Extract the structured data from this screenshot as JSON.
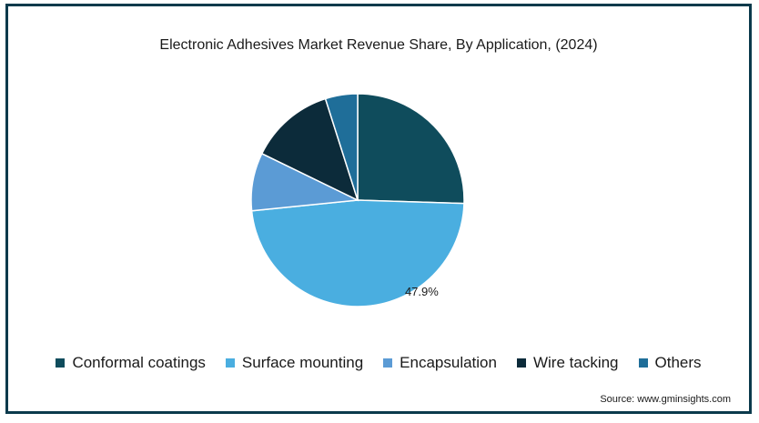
{
  "chart_data": {
    "type": "pie",
    "title": "Electronic Adhesives Market Revenue Share, By Application, (2024)",
    "slices": [
      {
        "name": "Conformal coatings",
        "value": 25.5,
        "color": "#0f4c5c"
      },
      {
        "name": "Surface mounting",
        "value": 47.9,
        "color": "#4aaee0",
        "label": "47.9%"
      },
      {
        "name": "Encapsulation",
        "value": 8.8,
        "color": "#5b9bd5"
      },
      {
        "name": "Wire tacking",
        "value": 12.9,
        "color": "#0c2b3a"
      },
      {
        "name": "Others",
        "value": 4.9,
        "color": "#1f6e99"
      }
    ],
    "start_angle_deg": 0,
    "direction": "clockwise",
    "legend_position": "bottom"
  },
  "source": "Source: www.gminsights.com"
}
